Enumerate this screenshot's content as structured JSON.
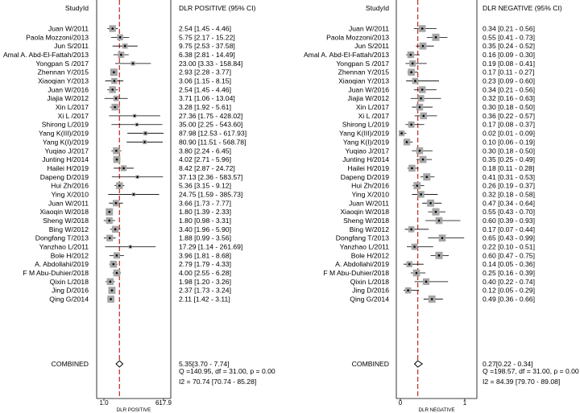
{
  "chart_data": [
    {
      "type": "forest",
      "scale": "log",
      "header_study": "StudyId",
      "header_estimate": "DLR POSITIVE (95% CI)",
      "xlabel": "DLR POSITIVE",
      "xticks": [
        "1.0",
        "617.9"
      ],
      "xlim": [
        1.0,
        617.9
      ],
      "reference_line": 5.35,
      "studies": [
        {
          "study": "Juan W/2011",
          "est": 2.54,
          "lo": 1.45,
          "hi": 4.46,
          "label": "2.54 [1.45 - 4.46]"
        },
        {
          "study": "Paola Mozzoni/2013",
          "est": 5.75,
          "lo": 2.17,
          "hi": 15.22,
          "label": "5.75 [2.17 - 15.22]"
        },
        {
          "study": "Jun S/2011",
          "est": 9.75,
          "lo": 2.53,
          "hi": 37.58,
          "label": "9.75 [2.53 - 37.58]"
        },
        {
          "study": "Amal A. Abd-El-Fattah/2013",
          "est": 6.38,
          "lo": 2.81,
          "hi": 14.49,
          "label": "6.38 [2.81 - 14.49]"
        },
        {
          "study": "Yongpan S /2017",
          "est": 23.0,
          "lo": 3.33,
          "hi": 158.84,
          "label": "23.00 [3.33 - 158.84]"
        },
        {
          "study": "Zhennan Y/2015",
          "est": 2.93,
          "lo": 2.28,
          "hi": 3.77,
          "label": "2.93 [2.28 - 3.77]"
        },
        {
          "study": "Xiaoqian Y/2013",
          "est": 3.06,
          "lo": 1.15,
          "hi": 8.15,
          "label": "3.06 [1.15 - 8.15]"
        },
        {
          "study": "Juan W/2016",
          "est": 2.54,
          "lo": 1.45,
          "hi": 4.46,
          "label": "2.54 [1.45 - 4.46]"
        },
        {
          "study": "Jiajia W/2012",
          "est": 3.71,
          "lo": 1.06,
          "hi": 13.04,
          "label": "3.71 [1.06 - 13.04]"
        },
        {
          "study": "Xin L/2017",
          "est": 3.28,
          "lo": 1.92,
          "hi": 5.61,
          "label": "3.28 [1.92 - 5.61]"
        },
        {
          "study": "Xi L /2017",
          "est": 27.36,
          "lo": 1.75,
          "hi": 428.02,
          "label": "27.36 [1.75 - 428.02]"
        },
        {
          "study": "Shirong L/2019",
          "est": 35.0,
          "lo": 2.25,
          "hi": 543.6,
          "label": "35.00 [2.25 - 543.60]"
        },
        {
          "study": "Yang K(III)/2019",
          "est": 87.98,
          "lo": 12.53,
          "hi": 617.93,
          "label": "87.98 [12.53 - 617.93]"
        },
        {
          "study": "Yang K(I)/2019",
          "est": 80.9,
          "lo": 11.51,
          "hi": 568.78,
          "label": "80.90 [11.51 - 568.78]"
        },
        {
          "study": "Yuqiao J/2017",
          "est": 3.8,
          "lo": 2.24,
          "hi": 6.45,
          "label": "3.80 [2.24 - 6.45]"
        },
        {
          "study": "Junting H/2014",
          "est": 4.02,
          "lo": 2.71,
          "hi": 5.96,
          "label": "4.02 [2.71 - 5.96]"
        },
        {
          "study": "Hailei H/2019",
          "est": 8.42,
          "lo": 2.87,
          "hi": 24.72,
          "label": "8.42 [2.87 - 24.72]"
        },
        {
          "study": "Dapeng D/2019",
          "est": 37.13,
          "lo": 2.36,
          "hi": 583.57,
          "label": "37.13 [2.36 - 583.57]"
        },
        {
          "study": "Hui Zh/2016",
          "est": 5.36,
          "lo": 3.15,
          "hi": 9.12,
          "label": "5.36 [3.15 - 9.12]"
        },
        {
          "study": "Ying X/2010",
          "est": 24.75,
          "lo": 1.59,
          "hi": 385.73,
          "label": "24.75 [1.59 - 385.73]"
        },
        {
          "study": "Juan W/2011",
          "est": 3.66,
          "lo": 1.73,
          "hi": 7.77,
          "label": "3.66 [1.73 - 7.77]"
        },
        {
          "study": "Xiaoqin W/2018",
          "est": 1.8,
          "lo": 1.39,
          "hi": 2.33,
          "label": "1.80 [1.39 - 2.33]"
        },
        {
          "study": "Sheng W/2018",
          "est": 1.8,
          "lo": 0.98,
          "hi": 3.31,
          "label": "1.80 [0.98 - 3.31]"
        },
        {
          "study": "Bing W/2012",
          "est": 3.4,
          "lo": 1.96,
          "hi": 5.9,
          "label": "3.40 [1.96 - 5.90]"
        },
        {
          "study": "Dongfang T/2013",
          "est": 1.88,
          "lo": 0.99,
          "hi": 3.56,
          "label": "1.88 [0.99 - 3.56]"
        },
        {
          "study": "Yanzhao L/2011",
          "est": 17.29,
          "lo": 1.14,
          "hi": 261.69,
          "label": "17.29 [1.14 - 261.69]"
        },
        {
          "study": "Bole H/2012",
          "est": 3.96,
          "lo": 1.81,
          "hi": 8.68,
          "label": "3.96 [1.81 - 8.68]"
        },
        {
          "study": "A. Abdollahi/2019",
          "est": 2.79,
          "lo": 1.79,
          "hi": 4.33,
          "label": "2.79 [1.79 - 4.33]"
        },
        {
          "study": "F M Abu-Duhier/2018",
          "est": 4.0,
          "lo": 2.55,
          "hi": 6.28,
          "label": "4.00 [2.55 - 6.28]"
        },
        {
          "study": "Qixin L/2018",
          "est": 1.98,
          "lo": 1.2,
          "hi": 3.26,
          "label": "1.98 [1.20 - 3.26]"
        },
        {
          "study": "Jing D/2016",
          "est": 2.37,
          "lo": 1.73,
          "hi": 3.24,
          "label": "2.37 [1.73 - 3.24]"
        },
        {
          "study": "Qing G/2014",
          "est": 2.11,
          "lo": 1.42,
          "hi": 3.11,
          "label": "2.11 [1.42 - 3.11]"
        }
      ],
      "combined": {
        "study": "COMBINED",
        "est": 5.35,
        "lo": 3.7,
        "hi": 7.74,
        "label": "5.35[3.70 - 7.74]"
      },
      "stats": [
        "Q =140.95, df = 31.00, p =  0.00",
        "I2 = 70.74 [70.74 - 85.28]"
      ]
    },
    {
      "type": "forest",
      "scale": "linear",
      "header_study": "StudyId",
      "header_estimate": "DLR NEGATIVE (95% CI)",
      "xlabel": "DLR NEGATIVE",
      "xticks": [
        "0",
        "1"
      ],
      "xlim": [
        0,
        1
      ],
      "reference_line": 0.27,
      "studies": [
        {
          "study": "Juan W/2011",
          "est": 0.34,
          "lo": 0.21,
          "hi": 0.56,
          "label": "0.34 [0.21 - 0.56]"
        },
        {
          "study": "Paola Mozzoni/2013",
          "est": 0.55,
          "lo": 0.41,
          "hi": 0.73,
          "label": "0.55 [0.41 - 0.73]"
        },
        {
          "study": "Jun S/2011",
          "est": 0.35,
          "lo": 0.24,
          "hi": 0.52,
          "label": "0.35 [0.24 - 0.52]"
        },
        {
          "study": "Amal A. Abd-El-Fattah/2013",
          "est": 0.16,
          "lo": 0.09,
          "hi": 0.3,
          "label": "0.16 [0.09 - 0.30]"
        },
        {
          "study": "Yongpan S /2017",
          "est": 0.19,
          "lo": 0.08,
          "hi": 0.41,
          "label": "0.19 [0.08 - 0.41]"
        },
        {
          "study": "Zhennan Y/2015",
          "est": 0.17,
          "lo": 0.11,
          "hi": 0.27,
          "label": "0.17 [0.11 - 0.27]"
        },
        {
          "study": "Xiaoqian Y/2013",
          "est": 0.23,
          "lo": 0.09,
          "hi": 0.6,
          "label": "0.23 [0.09 - 0.60]"
        },
        {
          "study": "Juan W/2016",
          "est": 0.34,
          "lo": 0.21,
          "hi": 0.56,
          "label": "0.34 [0.21 - 0.56]"
        },
        {
          "study": "Jiajia W/2012",
          "est": 0.32,
          "lo": 0.16,
          "hi": 0.63,
          "label": "0.32 [0.16 - 0.63]"
        },
        {
          "study": "Xin L/2017",
          "est": 0.3,
          "lo": 0.18,
          "hi": 0.5,
          "label": "0.30 [0.18 - 0.50]"
        },
        {
          "study": "Xi L /2017",
          "est": 0.36,
          "lo": 0.22,
          "hi": 0.57,
          "label": "0.36 [0.22 - 0.57]"
        },
        {
          "study": "Shirong L/2019",
          "est": 0.17,
          "lo": 0.08,
          "hi": 0.37,
          "label": "0.17 [0.08 - 0.37]"
        },
        {
          "study": "Yang K(III)/2019",
          "est": 0.02,
          "lo": 0.01,
          "hi": 0.09,
          "label": "0.02 [0.01 - 0.09]"
        },
        {
          "study": "Yang K(I)/2019",
          "est": 0.1,
          "lo": 0.06,
          "hi": 0.19,
          "label": "0.10 [0.06 - 0.19]"
        },
        {
          "study": "Yuqiao J/2017",
          "est": 0.3,
          "lo": 0.18,
          "hi": 0.5,
          "label": "0.30 [0.18 - 0.50]"
        },
        {
          "study": "Junting H/2014",
          "est": 0.35,
          "lo": 0.25,
          "hi": 0.49,
          "label": "0.35 [0.25 - 0.49]"
        },
        {
          "study": "Hailei H/2019",
          "est": 0.18,
          "lo": 0.11,
          "hi": 0.28,
          "label": "0.18 [0.11 - 0.28]"
        },
        {
          "study": "Dapeng D/2019",
          "est": 0.41,
          "lo": 0.31,
          "hi": 0.53,
          "label": "0.41 [0.31 - 0.53]"
        },
        {
          "study": "Hui Zh/2016",
          "est": 0.26,
          "lo": 0.19,
          "hi": 0.37,
          "label": "0.26 [0.19 - 0.37]"
        },
        {
          "study": "Ying X/2010",
          "est": 0.32,
          "lo": 0.18,
          "hi": 0.58,
          "label": "0.32 [0.18 - 0.58]"
        },
        {
          "study": "Juan W/2011",
          "est": 0.47,
          "lo": 0.34,
          "hi": 0.64,
          "label": "0.47 [0.34 - 0.64]"
        },
        {
          "study": "Xiaoqin W/2018",
          "est": 0.55,
          "lo": 0.43,
          "hi": 0.7,
          "label": "0.55 [0.43 - 0.70]"
        },
        {
          "study": "Sheng W/2018",
          "est": 0.6,
          "lo": 0.39,
          "hi": 0.93,
          "label": "0.60 [0.39 - 0.93]"
        },
        {
          "study": "Bing W/2012",
          "est": 0.17,
          "lo": 0.07,
          "hi": 0.44,
          "label": "0.17 [0.07 - 0.44]"
        },
        {
          "study": "Dongfang T/2013",
          "est": 0.65,
          "lo": 0.43,
          "hi": 0.99,
          "label": "0.65 [0.43 - 0.99]"
        },
        {
          "study": "Yanzhao L/2011",
          "est": 0.22,
          "lo": 0.1,
          "hi": 0.51,
          "label": "0.22 [0.10 - 0.51]"
        },
        {
          "study": "Bole H/2012",
          "est": 0.6,
          "lo": 0.47,
          "hi": 0.75,
          "label": "0.60 [0.47 - 0.75]"
        },
        {
          "study": "A. Abdollahi/2019",
          "est": 0.14,
          "lo": 0.05,
          "hi": 0.36,
          "label": "0.14 [0.05 - 0.36]"
        },
        {
          "study": "F M Abu-Duhier/2018",
          "est": 0.25,
          "lo": 0.16,
          "hi": 0.39,
          "label": "0.25 [0.16 - 0.39]"
        },
        {
          "study": "Qixin L/2018",
          "est": 0.4,
          "lo": 0.22,
          "hi": 0.74,
          "label": "0.40 [0.22 - 0.74]"
        },
        {
          "study": "Jing D/2016",
          "est": 0.12,
          "lo": 0.05,
          "hi": 0.29,
          "label": "0.12 [0.05 - 0.29]"
        },
        {
          "study": "Qing G/2014",
          "est": 0.49,
          "lo": 0.36,
          "hi": 0.66,
          "label": "0.49 [0.36 - 0.66]"
        }
      ],
      "combined": {
        "study": "COMBINED",
        "est": 0.27,
        "lo": 0.22,
        "hi": 0.34,
        "label": "0.27[0.22 - 0.34]"
      },
      "stats": [
        "Q =198.57, df = 31.00, p =  0.00",
        "I2 = 84.39 [79.70 - 89.08]"
      ]
    }
  ],
  "colors": {
    "reference_line": "#c0392b",
    "box_fill": "#a6a6a6",
    "point": "#000000",
    "axis": "#000000"
  }
}
